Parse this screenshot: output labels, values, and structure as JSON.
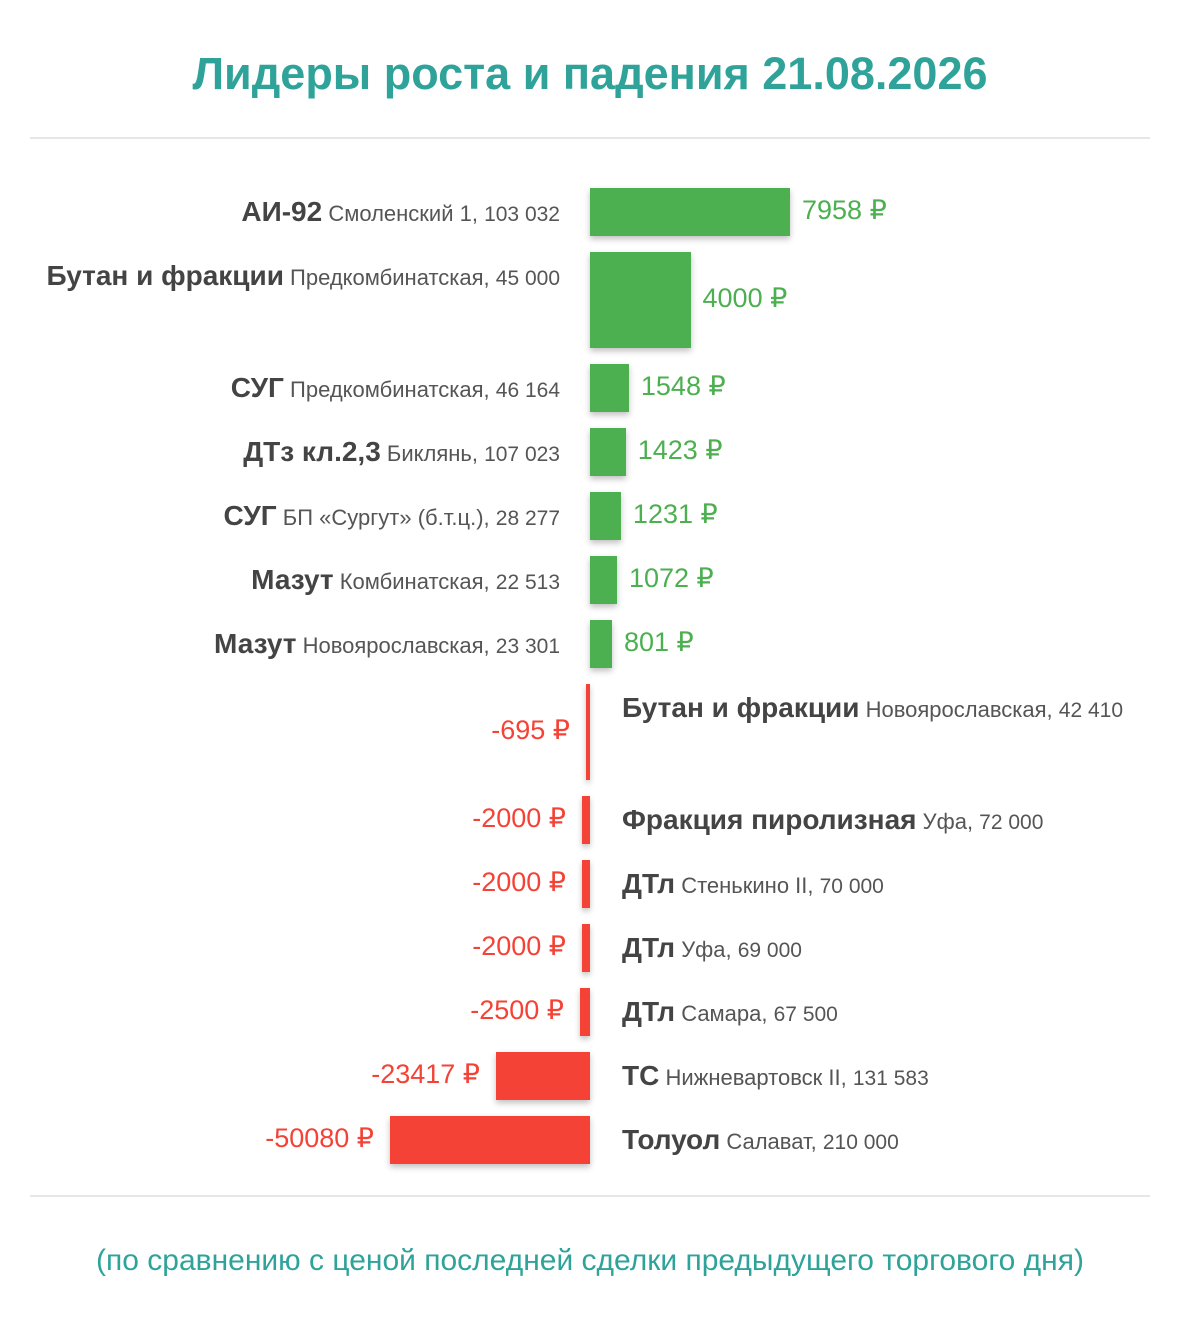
{
  "title": "Лидеры роста и падения 21.08.2026",
  "footer": "(по сравнению с ценой последней сделки предыдущего торгового дня)",
  "colors": {
    "title": "#2fa39a",
    "positive": "#4caf50",
    "negative": "#f44336",
    "text": "#555555"
  },
  "chart_data": {
    "type": "bar",
    "orientation": "horizontal",
    "unit": "₽",
    "rows": [
      {
        "product": "АИ-92",
        "location": "Смоленский 1",
        "volume": "103 032",
        "change": 7958,
        "change_label": "7958 ₽"
      },
      {
        "product": "Бутан и фракции",
        "location": "Предкомбинатская",
        "volume": "45 000",
        "change": 4000,
        "change_label": "4000 ₽"
      },
      {
        "product": "СУГ",
        "location": "Предкомбинатская",
        "volume": "46 164",
        "change": 1548,
        "change_label": "1548 ₽"
      },
      {
        "product": "ДТз кл.2,3",
        "location": "Биклянь",
        "volume": "107 023",
        "change": 1423,
        "change_label": "1423 ₽"
      },
      {
        "product": "СУГ",
        "location": "БП «Сургут» (б.т.ц.)",
        "volume": "28 277",
        "change": 1231,
        "change_label": "1231 ₽"
      },
      {
        "product": "Мазут",
        "location": "Комбинатская",
        "volume": "22 513",
        "change": 1072,
        "change_label": "1072 ₽"
      },
      {
        "product": "Мазут",
        "location": "Новоярославская",
        "volume": "23 301",
        "change": 801,
        "change_label": "801 ₽"
      },
      {
        "product": "Бутан и фракции",
        "location": "Новоярославская",
        "volume": "42 410",
        "change": -695,
        "change_label": "-695 ₽"
      },
      {
        "product": "Фракция пиролизная",
        "location": "Уфа",
        "volume": "72 000",
        "change": -2000,
        "change_label": "-2000 ₽"
      },
      {
        "product": "ДТл",
        "location": "Стенькино II",
        "volume": "70 000",
        "change": -2000,
        "change_label": "-2000 ₽"
      },
      {
        "product": "ДТл",
        "location": "Уфа",
        "volume": "69 000",
        "change": -2000,
        "change_label": "-2000 ₽"
      },
      {
        "product": "ДТл",
        "location": "Самара",
        "volume": "67 500",
        "change": -2500,
        "change_label": "-2500 ₽"
      },
      {
        "product": "ТС",
        "location": "Нижневартовск II",
        "volume": "131 583",
        "change": -23417,
        "change_label": "-23417 ₽"
      },
      {
        "product": "Толуол",
        "location": "Салават",
        "volume": "210 000",
        "change": -50080,
        "change_label": "-50080 ₽"
      }
    ]
  }
}
